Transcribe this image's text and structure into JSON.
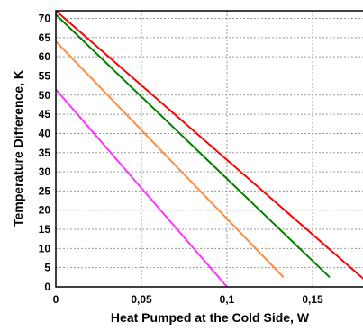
{
  "chart_data": {
    "type": "line",
    "xlabel": "Heat Pumped at the Cold Side, W",
    "ylabel": "Temperature Difference, K",
    "xlim": [
      0,
      0.18
    ],
    "ylim": [
      0,
      72
    ],
    "grid": true,
    "x_ticks": [
      {
        "value": 0,
        "label": "0"
      },
      {
        "value": 0.05,
        "label": "0,05"
      },
      {
        "value": 0.1,
        "label": "0,1"
      },
      {
        "value": 0.15,
        "label": "0,15"
      }
    ],
    "y_ticks": [
      0,
      5,
      10,
      15,
      20,
      25,
      30,
      35,
      40,
      45,
      50,
      55,
      60,
      65,
      70
    ],
    "series": [
      {
        "color": "#ff0000",
        "x": [
          0,
          0.18
        ],
        "y": [
          72,
          2
        ]
      },
      {
        "color": "#008000",
        "x": [
          0,
          0.16
        ],
        "y": [
          71,
          2.5
        ]
      },
      {
        "color": "#ff8c40",
        "x": [
          0,
          0.133
        ],
        "y": [
          64,
          2.5
        ]
      },
      {
        "color": "#ff33ff",
        "x": [
          0,
          0.1
        ],
        "y": [
          51.5,
          0
        ]
      }
    ]
  }
}
